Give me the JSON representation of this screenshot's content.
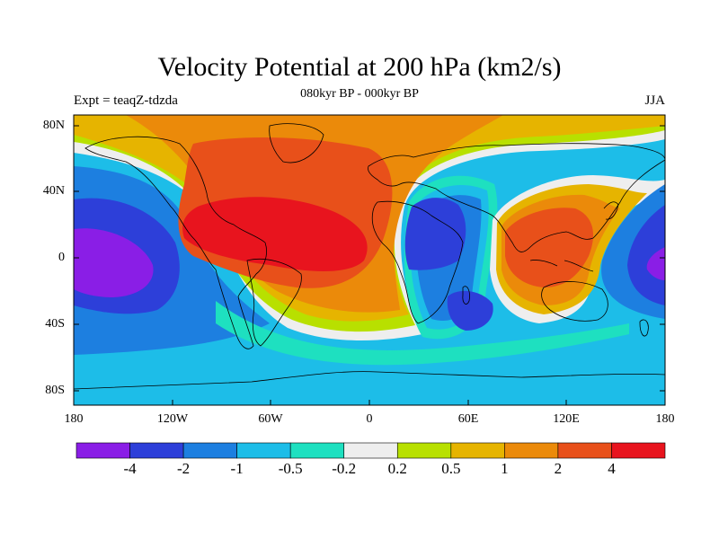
{
  "title": "Velocity Potential at 200 hPa (km2/s)",
  "subtitle": "080kyr BP - 000kyr BP",
  "experiment_label": "Expt = teaqZ-tdzda",
  "season_label": "JJA",
  "lat_ticks": [
    "80N",
    "40N",
    "0",
    "40S",
    "80S"
  ],
  "lon_ticks": [
    "180",
    "120W",
    "60W",
    "0",
    "60E",
    "120E",
    "180"
  ],
  "colors": {
    "lt_neg4": "#8a1ee6",
    "neg4_neg2": "#2d3fd9",
    "neg2_neg1": "#1d7fe0",
    "neg1_neg05": "#1dbde8",
    "neg05_neg02": "#1ee0c0",
    "neg02_02": "#eeeeee",
    "pos02_05": "#b8e000",
    "pos05_1": "#e6b400",
    "pos1_2": "#eb8a0a",
    "pos2_4": "#e8501a",
    "gt4": "#e8141e"
  },
  "colorbar": {
    "labels": [
      "-4",
      "-2",
      "-1",
      "-0.5",
      "-0.2",
      "0.2",
      "0.5",
      "1",
      "2",
      "4"
    ],
    "colors": [
      "#8a1ee6",
      "#2d3fd9",
      "#1d7fe0",
      "#1dbde8",
      "#1ee0c0",
      "#eeeeee",
      "#b8e000",
      "#e6b400",
      "#eb8a0a",
      "#e8501a",
      "#e8141e"
    ]
  }
}
